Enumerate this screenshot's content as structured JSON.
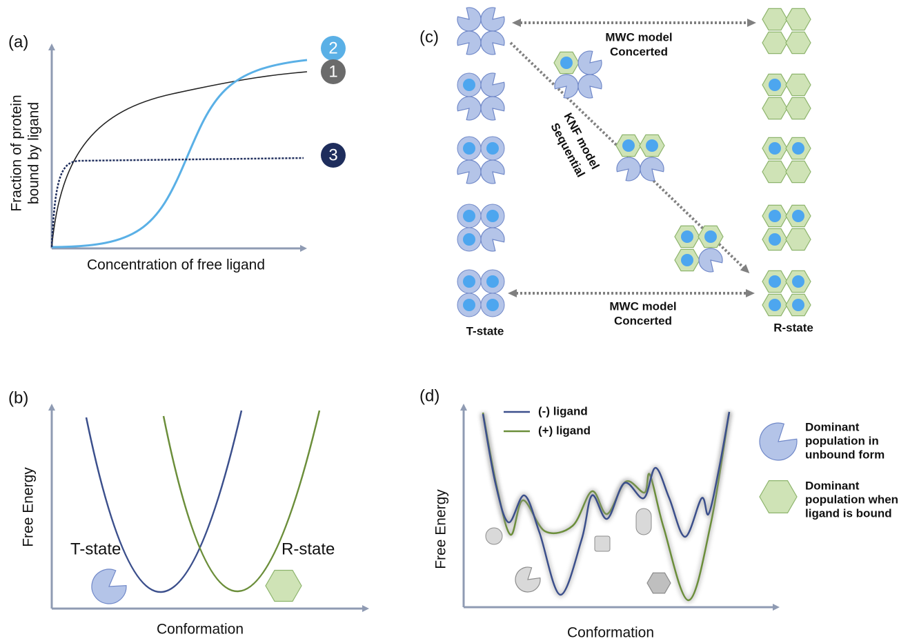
{
  "panel_a": {
    "label": "(a)",
    "y_axis_label": [
      "Fraction of protein",
      "bound by ligand"
    ],
    "x_axis_label": "Concentration of free ligand",
    "curve_labels": [
      "2",
      "1",
      "3"
    ]
  },
  "panel_b": {
    "label": "(b)",
    "y_axis_label": "Free Energy",
    "x_axis_label": "Conformation",
    "states": [
      "T-state",
      "R-state"
    ]
  },
  "panel_c": {
    "label": "(c)",
    "mwc_top": [
      "MWC model",
      "Concerted"
    ],
    "knf": [
      "KNF model",
      "Sequential"
    ],
    "mwc_bottom": [
      "MWC model",
      "Concerted"
    ],
    "states": [
      "T-state",
      "R-state"
    ]
  },
  "panel_d": {
    "label": "(d)",
    "legend": [
      "(-) ligand",
      "(+) ligand"
    ],
    "y_axis_label": "Free Energy",
    "x_axis_label": "Conformation",
    "key": [
      [
        "Dominant",
        "population in",
        "unbound form"
      ],
      [
        "Dominant",
        "population when",
        "ligand is bound"
      ]
    ]
  }
}
